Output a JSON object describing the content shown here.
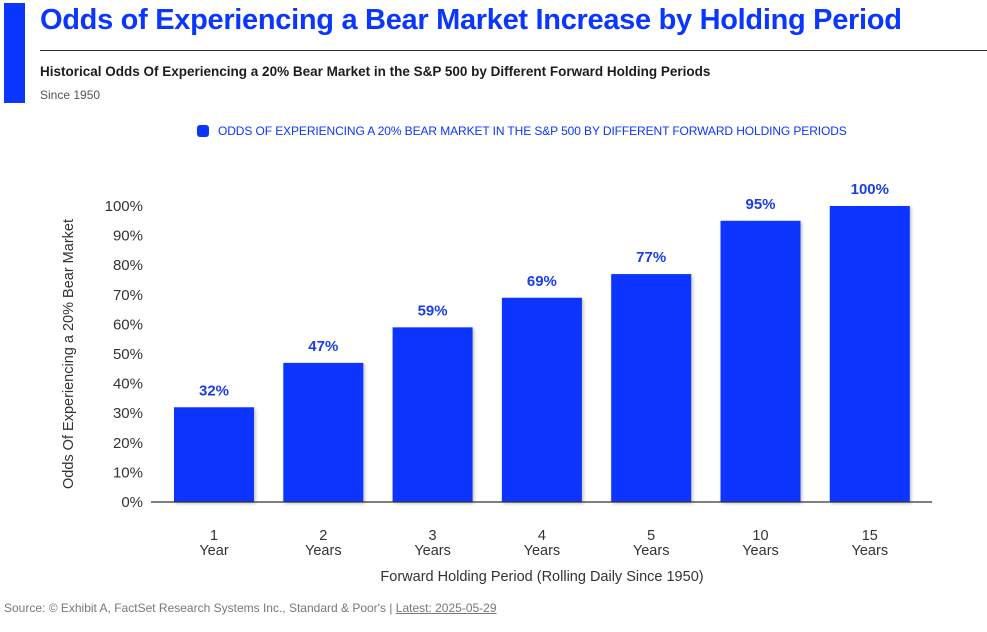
{
  "header": {
    "title": "Odds of Experiencing a Bear Market Increase by Holding Period",
    "subtitle": "Historical Odds Of Experiencing a 20% Bear Market in the S&P 500 by Different Forward Holding Periods",
    "since": "Since 1950"
  },
  "colors": {
    "accent": "#0a36ff",
    "value_label": "#1a3ee8"
  },
  "footer": {
    "source": "Source: © Exhibit A, FactSet Research Systems Inc., Standard & Poor's | ",
    "latest_link": "Latest: 2025-05-29"
  },
  "chart_data": {
    "type": "bar",
    "title": "Odds of Experiencing a Bear Market Increase by Holding Period",
    "legend": [
      "ODDS OF EXPERIENCING A 20% BEAR MARKET IN THE S&P 500 BY DIFFERENT FORWARD HOLDING PERIODS"
    ],
    "legend_position": "top",
    "categories": [
      [
        "1",
        "Year"
      ],
      [
        "2",
        "Years"
      ],
      [
        "3",
        "Years"
      ],
      [
        "4",
        "Years"
      ],
      [
        "5",
        "Years"
      ],
      [
        "10",
        "Years"
      ],
      [
        "15",
        "Years"
      ]
    ],
    "values": [
      32,
      47,
      59,
      69,
      77,
      95,
      100
    ],
    "value_labels": [
      "32%",
      "47%",
      "59%",
      "69%",
      "77%",
      "95%",
      "100%"
    ],
    "xlabel": "Forward Holding Period (Rolling Daily Since 1950)",
    "ylabel": "Odds Of Experiencing a 20% Bear Market",
    "ylim": [
      0,
      100
    ],
    "yticks": [
      0,
      10,
      20,
      30,
      40,
      50,
      60,
      70,
      80,
      90,
      100
    ],
    "ytick_labels": [
      "0%",
      "10%",
      "20%",
      "30%",
      "40%",
      "50%",
      "60%",
      "70%",
      "80%",
      "90%",
      "100%"
    ],
    "grid": false
  }
}
